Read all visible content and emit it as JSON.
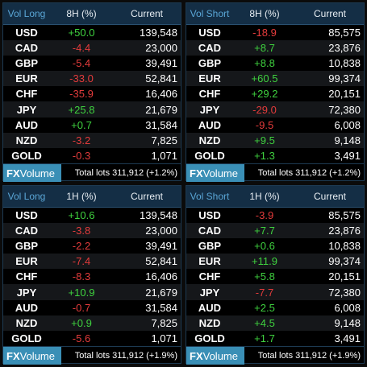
{
  "panels": [
    {
      "title": "Vol Long",
      "period": "8H (%)",
      "current": "Current",
      "rows": [
        {
          "sym": "USD",
          "chg": "+50.0",
          "dir": "pos",
          "cur": "139,548"
        },
        {
          "sym": "CAD",
          "chg": "-4.4",
          "dir": "neg",
          "cur": "23,000"
        },
        {
          "sym": "GBP",
          "chg": "-5.4",
          "dir": "neg",
          "cur": "39,491"
        },
        {
          "sym": "EUR",
          "chg": "-33.0",
          "dir": "neg",
          "cur": "52,841"
        },
        {
          "sym": "CHF",
          "chg": "-35.9",
          "dir": "neg",
          "cur": "16,406"
        },
        {
          "sym": "JPY",
          "chg": "+25.8",
          "dir": "pos",
          "cur": "21,679"
        },
        {
          "sym": "AUD",
          "chg": "+0.7",
          "dir": "pos",
          "cur": "31,584"
        },
        {
          "sym": "NZD",
          "chg": "-3.2",
          "dir": "neg",
          "cur": "7,825"
        },
        {
          "sym": "GOLD",
          "chg": "-0.3",
          "dir": "neg",
          "cur": "1,071"
        }
      ],
      "logo_fx": "FX",
      "logo_vol": "Volume",
      "total": "Total lots 311,912 (+1.2%)"
    },
    {
      "title": "Vol Short",
      "period": "8H (%)",
      "current": "Current",
      "rows": [
        {
          "sym": "USD",
          "chg": "-18.9",
          "dir": "neg",
          "cur": "85,575"
        },
        {
          "sym": "CAD",
          "chg": "+8.7",
          "dir": "pos",
          "cur": "23,876"
        },
        {
          "sym": "GBP",
          "chg": "+8.8",
          "dir": "pos",
          "cur": "10,838"
        },
        {
          "sym": "EUR",
          "chg": "+60.5",
          "dir": "pos",
          "cur": "99,374"
        },
        {
          "sym": "CHF",
          "chg": "+29.2",
          "dir": "pos",
          "cur": "20,151"
        },
        {
          "sym": "JPY",
          "chg": "-29.0",
          "dir": "neg",
          "cur": "72,380"
        },
        {
          "sym": "AUD",
          "chg": "-9.5",
          "dir": "neg",
          "cur": "6,008"
        },
        {
          "sym": "NZD",
          "chg": "+9.5",
          "dir": "pos",
          "cur": "9,148"
        },
        {
          "sym": "GOLD",
          "chg": "+1.3",
          "dir": "pos",
          "cur": "3,491"
        }
      ],
      "logo_fx": "FX",
      "logo_vol": "Volume",
      "total": "Total lots 311,912 (+1.2%)"
    },
    {
      "title": "Vol Long",
      "period": "1H (%)",
      "current": "Current",
      "rows": [
        {
          "sym": "USD",
          "chg": "+10.6",
          "dir": "pos",
          "cur": "139,548"
        },
        {
          "sym": "CAD",
          "chg": "-3.8",
          "dir": "neg",
          "cur": "23,000"
        },
        {
          "sym": "GBP",
          "chg": "-2.2",
          "dir": "neg",
          "cur": "39,491"
        },
        {
          "sym": "EUR",
          "chg": "-7.4",
          "dir": "neg",
          "cur": "52,841"
        },
        {
          "sym": "CHF",
          "chg": "-8.3",
          "dir": "neg",
          "cur": "16,406"
        },
        {
          "sym": "JPY",
          "chg": "+10.9",
          "dir": "pos",
          "cur": "21,679"
        },
        {
          "sym": "AUD",
          "chg": "-0.7",
          "dir": "neg",
          "cur": "31,584"
        },
        {
          "sym": "NZD",
          "chg": "+0.9",
          "dir": "pos",
          "cur": "7,825"
        },
        {
          "sym": "GOLD",
          "chg": "-5.6",
          "dir": "neg",
          "cur": "1,071"
        }
      ],
      "logo_fx": "FX",
      "logo_vol": "Volume",
      "total": "Total lots 311,912 (+1.9%)"
    },
    {
      "title": "Vol Short",
      "period": "1H (%)",
      "current": "Current",
      "rows": [
        {
          "sym": "USD",
          "chg": "-3.9",
          "dir": "neg",
          "cur": "85,575"
        },
        {
          "sym": "CAD",
          "chg": "+7.7",
          "dir": "pos",
          "cur": "23,876"
        },
        {
          "sym": "GBP",
          "chg": "+0.6",
          "dir": "pos",
          "cur": "10,838"
        },
        {
          "sym": "EUR",
          "chg": "+11.9",
          "dir": "pos",
          "cur": "99,374"
        },
        {
          "sym": "CHF",
          "chg": "+5.8",
          "dir": "pos",
          "cur": "20,151"
        },
        {
          "sym": "JPY",
          "chg": "-7.7",
          "dir": "neg",
          "cur": "72,380"
        },
        {
          "sym": "AUD",
          "chg": "+2.5",
          "dir": "pos",
          "cur": "6,008"
        },
        {
          "sym": "NZD",
          "chg": "+4.5",
          "dir": "pos",
          "cur": "9,148"
        },
        {
          "sym": "GOLD",
          "chg": "+1.7",
          "dir": "pos",
          "cur": "3,491"
        }
      ],
      "logo_fx": "FX",
      "logo_vol": "Volume",
      "total": "Total lots 311,912 (+1.9%)"
    }
  ]
}
